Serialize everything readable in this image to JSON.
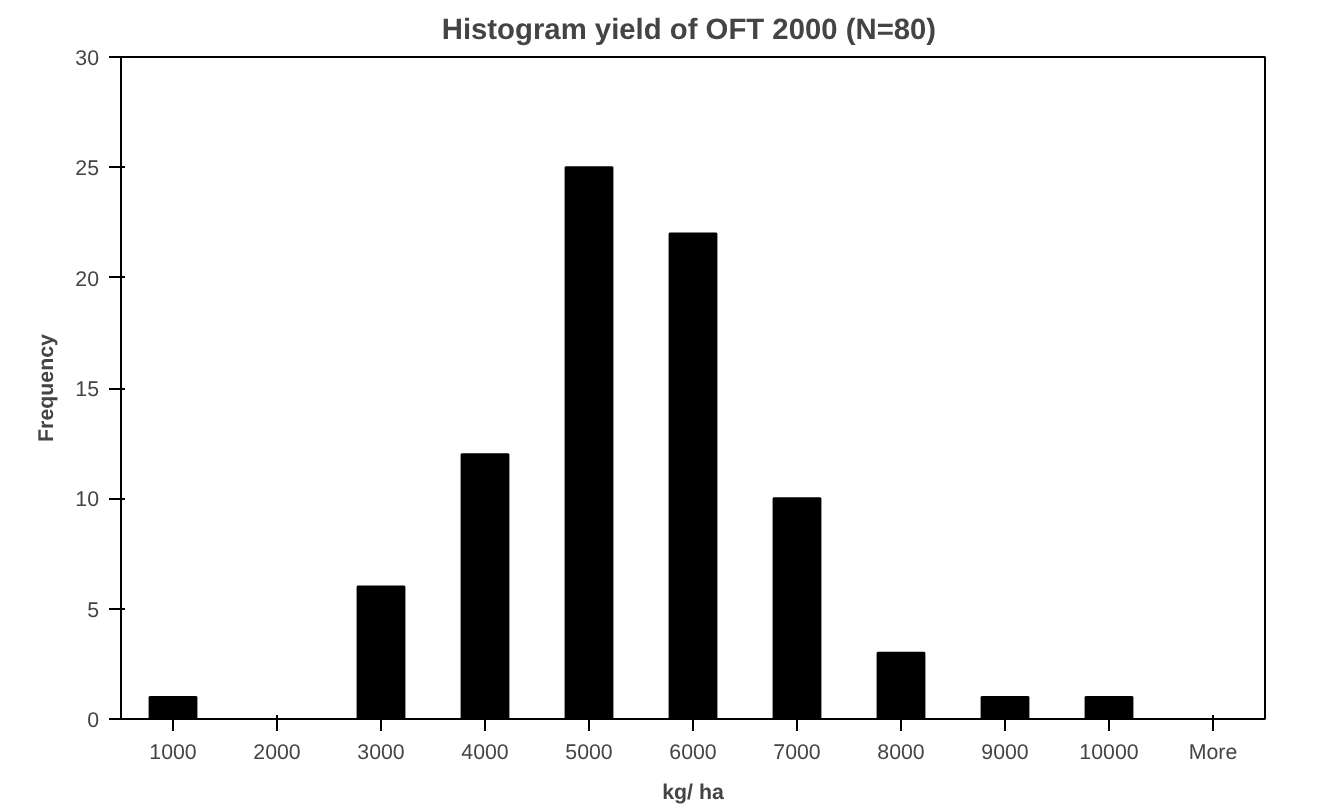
{
  "chart_data": {
    "type": "bar",
    "title": "Histogram yield of OFT  2000 (N=80)",
    "xlabel": "kg/ ha",
    "ylabel": "Frequency",
    "categories": [
      "1000",
      "2000",
      "3000",
      "4000",
      "5000",
      "6000",
      "7000",
      "8000",
      "9000",
      "10000",
      "More"
    ],
    "values": [
      1,
      0,
      6,
      12,
      25,
      22,
      10,
      3,
      1,
      1,
      0
    ],
    "color": "#000000",
    "ylim": [
      0,
      30
    ],
    "yticks": [
      0,
      5,
      10,
      15,
      20,
      25,
      30
    ],
    "grid": false
  }
}
